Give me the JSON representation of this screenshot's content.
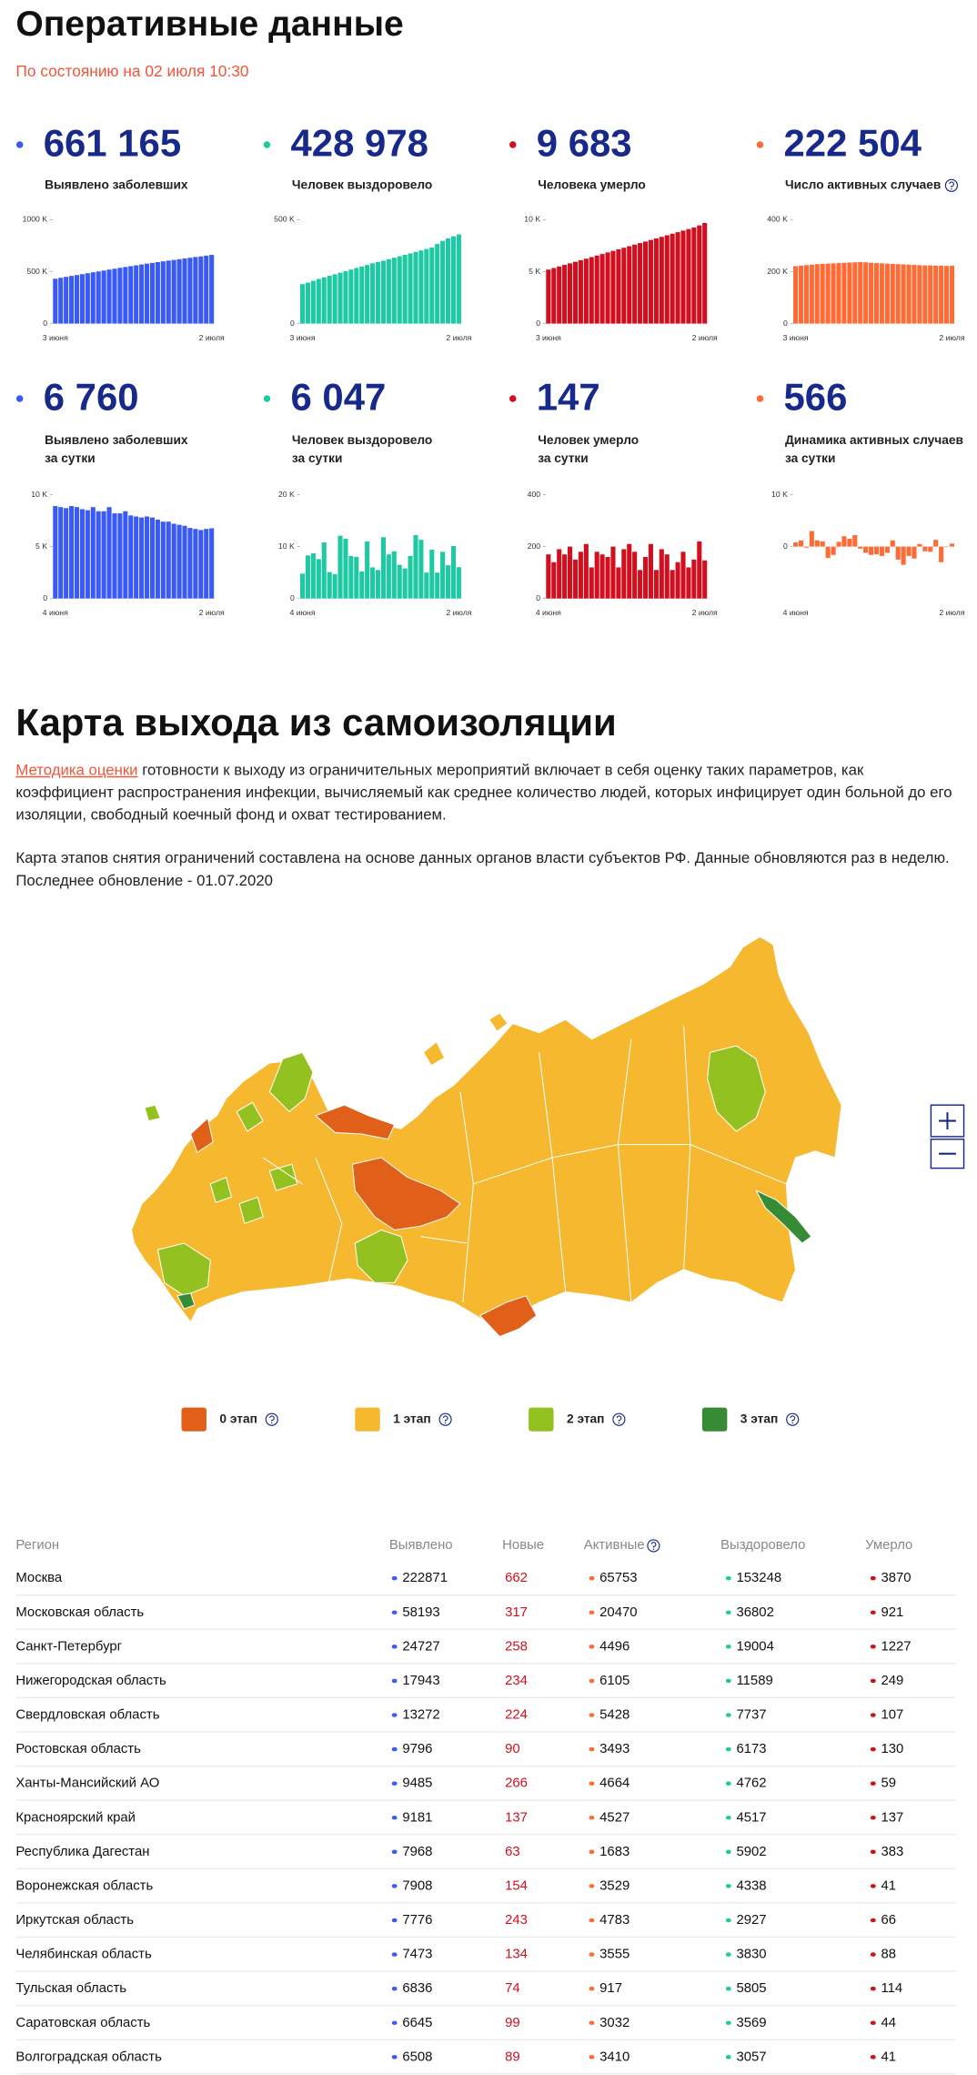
{
  "header": {
    "title": "Оперативные данные",
    "subtitle": "По состоянию на 02 июля 10:30"
  },
  "stats": [
    {
      "value": "661 165",
      "label": [
        "Выявлено заболевших"
      ],
      "color": "#3a5af5",
      "chart": {
        "type": "bar",
        "categories": [
          "3 июня",
          null,
          null,
          null,
          null,
          null,
          null,
          null,
          null,
          null,
          null,
          null,
          null,
          null,
          null,
          null,
          null,
          null,
          null,
          null,
          null,
          null,
          null,
          null,
          null,
          null,
          null,
          null,
          null,
          "2 июля"
        ],
        "values": [
          432000,
          441000,
          450000,
          459000,
          467000,
          476000,
          485000,
          494000,
          502000,
          511000,
          520000,
          528000,
          537000,
          545000,
          553000,
          561000,
          569000,
          577000,
          584000,
          592000,
          599000,
          606000,
          613000,
          620000,
          627000,
          634000,
          641000,
          647000,
          654000,
          661000
        ],
        "ylim": [
          0,
          1000000
        ],
        "yticks": [
          0,
          {
            "value": 500000,
            "label": "500 K"
          },
          {
            "value": 1000000,
            "label": "1000 K"
          }
        ]
      }
    },
    {
      "value": "428 978",
      "label": [
        "Человек выздоровело"
      ],
      "color": "#1fc9a4",
      "chart": {
        "type": "bar",
        "categories": [
          "3 июня",
          null,
          null,
          null,
          null,
          null,
          null,
          null,
          null,
          null,
          null,
          null,
          null,
          null,
          null,
          null,
          null,
          null,
          null,
          null,
          null,
          null,
          null,
          null,
          null,
          null,
          null,
          null,
          null,
          "2 июля"
        ],
        "values": [
          190000,
          197000,
          206000,
          215000,
          222000,
          230000,
          237000,
          245000,
          252000,
          260000,
          268000,
          275000,
          282000,
          290000,
          297000,
          303000,
          310000,
          317000,
          324000,
          331000,
          338000,
          345000,
          352000,
          359000,
          366000,
          383000,
          398000,
          410000,
          420000,
          429000
        ],
        "ylim": [
          0,
          500000
        ],
        "yticks": [
          0,
          {
            "value": 500000,
            "label": "500 K"
          }
        ]
      }
    },
    {
      "value": "9 683",
      "label": [
        "Человека умерло"
      ],
      "color": "#d10f1f",
      "chart": {
        "type": "bar",
        "categories": [
          "3 июня",
          null,
          null,
          null,
          null,
          null,
          null,
          null,
          null,
          null,
          null,
          null,
          null,
          null,
          null,
          null,
          null,
          null,
          null,
          null,
          null,
          null,
          null,
          null,
          null,
          null,
          null,
          null,
          null,
          "2 июля"
        ],
        "values": [
          5200,
          5350,
          5500,
          5650,
          5800,
          5950,
          6100,
          6250,
          6400,
          6550,
          6700,
          6850,
          7000,
          7150,
          7300,
          7450,
          7600,
          7750,
          7900,
          8050,
          8200,
          8350,
          8500,
          8650,
          8800,
          8950,
          9100,
          9250,
          9450,
          9683
        ],
        "ylim": [
          0,
          10000
        ],
        "yticks": [
          0,
          {
            "value": 5000,
            "label": "5 K"
          },
          {
            "value": 10000,
            "label": "10 K"
          }
        ]
      }
    },
    {
      "value": "222 504",
      "label": [
        "Число активных случаев"
      ],
      "color": "#ff6b35",
      "info_icon": true,
      "chart": {
        "type": "bar",
        "categories": [
          "3 июня",
          null,
          null,
          null,
          null,
          null,
          null,
          null,
          null,
          null,
          null,
          null,
          null,
          null,
          null,
          null,
          null,
          null,
          null,
          null,
          null,
          null,
          null,
          null,
          null,
          null,
          null,
          null,
          null,
          "2 июля"
        ],
        "values": [
          221000,
          223000,
          225000,
          227000,
          229000,
          230000,
          231000,
          232000,
          233000,
          234000,
          235000,
          236000,
          237000,
          236000,
          234000,
          233000,
          232000,
          231000,
          230000,
          229000,
          228000,
          227000,
          226000,
          225000,
          224000,
          224000,
          223000,
          223000,
          222000,
          222504
        ],
        "ylim": [
          0,
          400000
        ],
        "yticks": [
          0,
          {
            "value": 200000,
            "label": "200 K"
          },
          {
            "value": 400000,
            "label": "400 K"
          }
        ]
      }
    },
    {
      "value": "6 760",
      "label": [
        "Выявлено заболевших",
        "за сутки"
      ],
      "color": "#3a5af5",
      "chart": {
        "type": "bar",
        "categories": [
          "4 июня",
          null,
          null,
          null,
          null,
          null,
          null,
          null,
          null,
          null,
          null,
          null,
          null,
          null,
          null,
          null,
          null,
          null,
          null,
          null,
          null,
          null,
          null,
          null,
          null,
          null,
          null,
          null,
          null,
          "2 июля"
        ],
        "values": [
          8900,
          8800,
          8700,
          8900,
          8800,
          8600,
          8500,
          8800,
          8400,
          8400,
          8800,
          8200,
          8200,
          8400,
          8000,
          7900,
          7800,
          7900,
          7800,
          7600,
          7400,
          7400,
          7200,
          7100,
          7000,
          6800,
          6700,
          6600,
          6700,
          6760
        ],
        "ylim": [
          0,
          10000
        ],
        "yticks": [
          0,
          {
            "value": 5000,
            "label": "5 K"
          },
          {
            "value": 10000,
            "label": "10 K"
          }
        ]
      }
    },
    {
      "value": "6 047",
      "label": [
        "Человек выздоровело",
        "за сутки"
      ],
      "color": "#1fc9a4",
      "chart": {
        "type": "bar",
        "categories": [
          "4 июня",
          null,
          null,
          null,
          null,
          null,
          null,
          null,
          null,
          null,
          null,
          null,
          null,
          null,
          null,
          null,
          null,
          null,
          null,
          null,
          null,
          null,
          null,
          null,
          null,
          null,
          null,
          null,
          null,
          "2 июля"
        ],
        "values": [
          4800,
          8300,
          8700,
          7600,
          10800,
          5100,
          4700,
          12100,
          11500,
          8200,
          8000,
          5200,
          11000,
          6000,
          5500,
          11800,
          8500,
          9100,
          6500,
          5800,
          8200,
          12200,
          11300,
          5000,
          9400,
          5000,
          9000,
          6400,
          10100,
          6047
        ],
        "ylim": [
          0,
          20000
        ],
        "yticks": [
          0,
          {
            "value": 10000,
            "label": "10 K"
          },
          {
            "value": 20000,
            "label": "20 K"
          }
        ]
      }
    },
    {
      "value": "147",
      "label": [
        "Человек умерло",
        "за сутки"
      ],
      "color": "#d10f1f",
      "chart": {
        "type": "bar",
        "categories": [
          "4 июня",
          null,
          null,
          null,
          null,
          null,
          null,
          null,
          null,
          null,
          null,
          null,
          null,
          null,
          null,
          null,
          null,
          null,
          null,
          null,
          null,
          null,
          null,
          null,
          null,
          null,
          null,
          null,
          null,
          "2 июля"
        ],
        "values": [
          170,
          140,
          190,
          170,
          200,
          150,
          180,
          210,
          120,
          180,
          170,
          160,
          200,
          120,
          190,
          210,
          180,
          110,
          160,
          210,
          110,
          190,
          170,
          110,
          140,
          180,
          120,
          150,
          220,
          147
        ],
        "ylim": [
          0,
          400
        ],
        "yticks": [
          0,
          200,
          400
        ]
      }
    },
    {
      "value": "566",
      "label": [
        "Динамика активных случаев",
        "за сутки"
      ],
      "color": "#ff6b35",
      "chart": {
        "type": "bar",
        "categories": [
          "4 июня",
          null,
          null,
          null,
          null,
          null,
          null,
          null,
          null,
          null,
          null,
          null,
          null,
          null,
          null,
          null,
          null,
          null,
          null,
          null,
          null,
          null,
          null,
          null,
          null,
          null,
          null,
          null,
          null,
          "2 июля"
        ],
        "values": [
          800,
          1200,
          -200,
          3000,
          1200,
          1000,
          -2200,
          -1600,
          900,
          2000,
          1500,
          2200,
          -400,
          -1200,
          -1600,
          -1500,
          -1800,
          -1200,
          1200,
          -2500,
          -3500,
          -1800,
          -2300,
          500,
          -900,
          -1000,
          1300,
          -3000,
          -100,
          566
        ],
        "ylim": [
          -10000,
          10000
        ],
        "yticks": [
          0,
          {
            "value": 10000,
            "label": "10 K"
          }
        ]
      }
    }
  ],
  "map_section": {
    "title": "Карта выхода из самоизоляции",
    "paragraph1": {
      "link": "Методика оценки",
      "text": "готовности к выходу из ограничительных мероприятий включает в себя оценку таких параметров, как коэффициент распространения инфекции, вычисляемый как среднее количество людей, которых инфицирует один больной до его изоляции, свободный коечный фонд и охват тестированием."
    },
    "paragraph2": [
      "Карта этапов снятия ограничений составлена на основе данных органов власти субъектов РФ. Данные обновляются раз в неделю.",
      "Последнее обновление - 01.07.2020"
    ],
    "legend": [
      {
        "label": "0 этап",
        "color": "#e0601a"
      },
      {
        "label": "1 этап",
        "color": "#f5b82e"
      },
      {
        "label": "2 этап",
        "color": "#93c11f"
      },
      {
        "label": "3 этап",
        "color": "#378b35"
      }
    ]
  },
  "table": {
    "header": [
      "Регион",
      "Выявлено",
      "Новые",
      "Активные",
      "Выздоровело",
      "Умерло"
    ],
    "rows": [
      [
        "Москва",
        222871,
        662,
        65753,
        153248,
        3870
      ],
      [
        "Московская область",
        58193,
        317,
        20470,
        36802,
        921
      ],
      [
        "Санкт-Петербург",
        24727,
        258,
        4496,
        19004,
        1227
      ],
      [
        "Нижегородская область",
        17943,
        234,
        6105,
        11589,
        249
      ],
      [
        "Свердловская область",
        13272,
        224,
        5428,
        7737,
        107
      ],
      [
        "Ростовская область",
        9796,
        90,
        3493,
        6173,
        130
      ],
      [
        "Ханты-Мансийский АО",
        9485,
        266,
        4664,
        4762,
        59
      ],
      [
        "Красноярский край",
        9181,
        137,
        4527,
        4517,
        137
      ],
      [
        "Республика Дагестан",
        7968,
        63,
        1683,
        5902,
        383
      ],
      [
        "Воронежская область",
        7908,
        154,
        3529,
        4338,
        41
      ],
      [
        "Иркутская область",
        7776,
        243,
        4783,
        2927,
        66
      ],
      [
        "Челябинская область",
        7473,
        134,
        3555,
        3830,
        88
      ],
      [
        "Тульская область",
        6836,
        74,
        917,
        5805,
        114
      ],
      [
        "Саратовская область",
        6645,
        99,
        3032,
        3569,
        44
      ],
      [
        "Волгоградская область",
        6508,
        89,
        3410,
        3057,
        41
      ]
    ]
  }
}
